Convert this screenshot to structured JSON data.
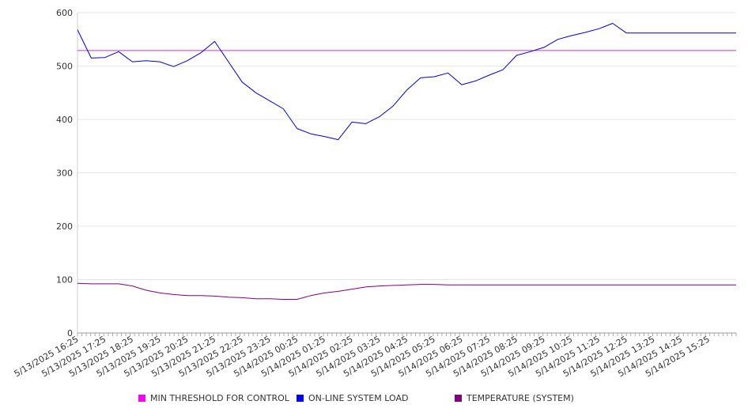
{
  "chart_data": {
    "type": "line",
    "title": "",
    "xlabel": "",
    "ylabel": "",
    "ylim": [
      0,
      600
    ],
    "y_ticks": [
      0,
      100,
      200,
      300,
      400,
      500,
      600
    ],
    "grid": true,
    "legend_position": "bottom",
    "x_tick_labels": [
      "5/13/2025 16:25",
      "5/13/2025 17:25",
      "5/13/2025 18:25",
      "5/13/2025 19:25",
      "5/13/2025 20:25",
      "5/13/2025 21:25",
      "5/13/2025 22:25",
      "5/13/2025 23:25",
      "5/14/2025 00:25",
      "5/14/2025 01:25",
      "5/14/2025 02:25",
      "5/14/2025 03:25",
      "5/14/2025 04:25",
      "5/14/2025 05:25",
      "5/14/2025 06:25",
      "5/14/2025 07:25",
      "5/14/2025 08:25",
      "5/14/2025 09:25",
      "5/14/2025 10:25",
      "5/14/2025 11:25",
      "5/14/2025 12:25",
      "5/14/2025 13:25",
      "5/14/2025 14:25",
      "5/14/2025 15:25"
    ],
    "x": [
      "5/13/2025 16:25",
      "5/13/2025 16:55",
      "5/13/2025 17:25",
      "5/13/2025 17:55",
      "5/13/2025 18:25",
      "5/13/2025 18:55",
      "5/13/2025 19:25",
      "5/13/2025 19:55",
      "5/13/2025 20:25",
      "5/13/2025 20:55",
      "5/13/2025 21:25",
      "5/13/2025 21:55",
      "5/13/2025 22:25",
      "5/13/2025 22:55",
      "5/13/2025 23:25",
      "5/13/2025 23:55",
      "5/14/2025 00:25",
      "5/14/2025 00:55",
      "5/14/2025 01:25",
      "5/14/2025 01:55",
      "5/14/2025 02:25",
      "5/14/2025 02:55",
      "5/14/2025 03:25",
      "5/14/2025 03:55",
      "5/14/2025 04:25",
      "5/14/2025 04:55",
      "5/14/2025 05:25",
      "5/14/2025 05:55",
      "5/14/2025 06:25",
      "5/14/2025 06:55",
      "5/14/2025 07:25",
      "5/14/2025 07:55",
      "5/14/2025 08:25",
      "5/14/2025 08:55",
      "5/14/2025 09:25",
      "5/14/2025 09:55",
      "5/14/2025 10:25",
      "5/14/2025 10:55",
      "5/14/2025 11:25",
      "5/14/2025 11:55",
      "5/14/2025 12:25",
      "5/14/2025 12:55",
      "5/14/2025 13:25",
      "5/14/2025 13:55",
      "5/14/2025 14:25",
      "5/14/2025 14:55",
      "5/14/2025 15:25",
      "5/14/2025 15:55"
    ],
    "series": [
      {
        "name": "MIN THRESHOLD FOR CONTROL",
        "color": "#cc33cc",
        "values": [
          529,
          529,
          529,
          529,
          529,
          529,
          529,
          529,
          529,
          529,
          529,
          529,
          529,
          529,
          529,
          529,
          529,
          529,
          529,
          529,
          529,
          529,
          529,
          529,
          529,
          529,
          529,
          529,
          529,
          529,
          529,
          529,
          529,
          529,
          529,
          529,
          529,
          529,
          529,
          529,
          529,
          529,
          529,
          529,
          529,
          529,
          529,
          529
        ]
      },
      {
        "name": "ON-LINE SYSTEM LOAD",
        "color": "#0000cc",
        "values": [
          568,
          515,
          516,
          527,
          508,
          510,
          508,
          499,
          510,
          525,
          546,
          508,
          470,
          450,
          435,
          420,
          383,
          373,
          368,
          362,
          395,
          392,
          405,
          425,
          455,
          478,
          480,
          487,
          465,
          472,
          483,
          493,
          520,
          527,
          535,
          550,
          557,
          563,
          570,
          580,
          562,
          562,
          562,
          562,
          562,
          562,
          562,
          562
        ]
      },
      {
        "name": "TEMPERATURE (SYSTEM)",
        "color": "#800080",
        "values": [
          93,
          92,
          92,
          92,
          88,
          80,
          75,
          72,
          70,
          70,
          69,
          67,
          66,
          64,
          64,
          63,
          63,
          70,
          75,
          78,
          82,
          86,
          88,
          89,
          90,
          91,
          91,
          90,
          90,
          90,
          90,
          90,
          90,
          90,
          90,
          90,
          90,
          90,
          90,
          90,
          90,
          90,
          90,
          90,
          90,
          90,
          90,
          90
        ]
      }
    ]
  }
}
